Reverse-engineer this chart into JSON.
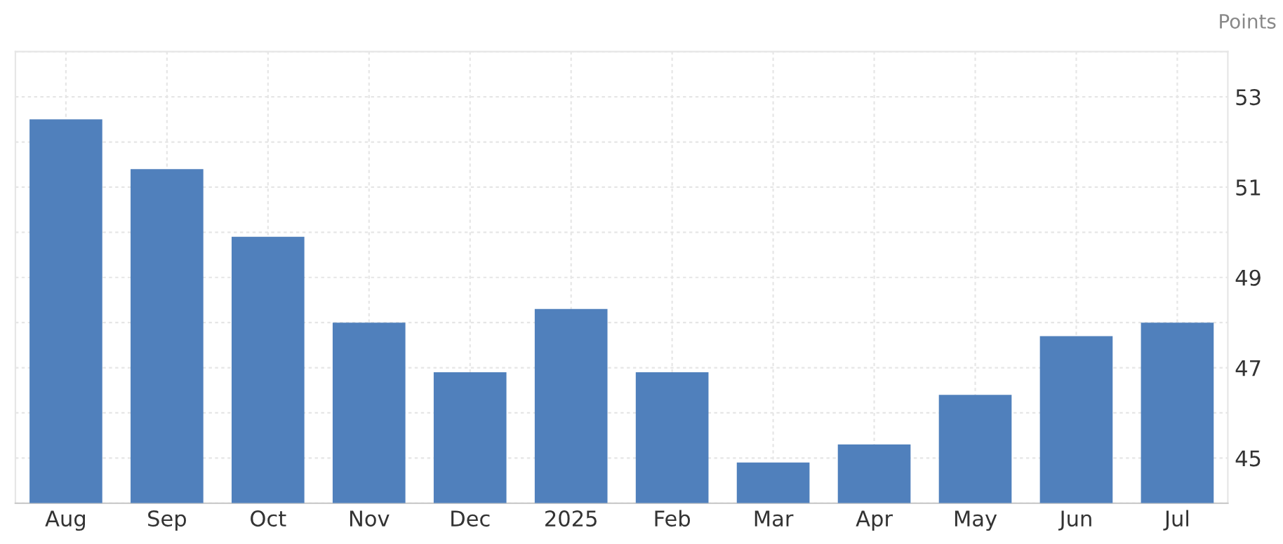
{
  "chart_data": {
    "type": "bar",
    "ylabel": "Points",
    "categories": [
      "Aug",
      "Sep",
      "Oct",
      "Nov",
      "Dec",
      "2025",
      "Feb",
      "Mar",
      "Apr",
      "May",
      "Jun",
      "Jul"
    ],
    "values": [
      52.5,
      51.4,
      49.9,
      48.0,
      46.9,
      48.3,
      46.9,
      44.9,
      45.3,
      46.4,
      47.7,
      48.0
    ],
    "color": "#5080bc",
    "ylim": [
      44,
      54
    ],
    "yticks": [
      {
        "value": 44,
        "label": null
      },
      45,
      {
        "value": 46,
        "label": null
      },
      47,
      {
        "value": 48,
        "label": null
      },
      49,
      {
        "value": 50,
        "label": null
      },
      51,
      {
        "value": 52,
        "label": null
      },
      53,
      {
        "value": 54,
        "label": null
      }
    ],
    "grid": true
  }
}
